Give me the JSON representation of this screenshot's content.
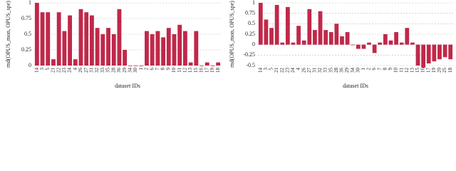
{
  "chart_data": [
    {
      "type": "bar",
      "ylabel": "rnd(OPUS_mon, OPUS_spe)",
      "xlabel": "dataset IDs",
      "color": "#c0284a",
      "grid": true,
      "ylim": [
        0,
        1
      ],
      "yticks": [
        0,
        0.25,
        0.5,
        0.75,
        1
      ],
      "categories": [
        "14",
        "3",
        "5",
        "21",
        "22",
        "23",
        "24",
        "4",
        "26",
        "27",
        "31",
        "32",
        "33",
        "35",
        "28",
        "36",
        "29",
        "34",
        "30",
        "1",
        "2",
        "6",
        "7",
        "8",
        "9",
        "10",
        "11",
        "12",
        "13",
        "15",
        "16",
        "17",
        "19",
        "18"
      ],
      "values": [
        1.0,
        0.85,
        0.85,
        0.1,
        0.85,
        0.55,
        0.8,
        0.1,
        0.9,
        0.85,
        0.8,
        0.6,
        0.5,
        0.6,
        0.5,
        0.9,
        0.25,
        0.0,
        0.0,
        0.0,
        0.55,
        0.5,
        0.55,
        0.45,
        0.6,
        0.5,
        0.65,
        0.55,
        0.05,
        0.55,
        0.0,
        0.05,
        0.0,
        0.05
      ]
    },
    {
      "type": "bar",
      "ylabel": "rnd(OPUS_mon, OPUS_spe)",
      "xlabel": "dataset IDs",
      "color": "#c0284a",
      "grid": true,
      "ylim": [
        -0.5,
        1
      ],
      "yticks": [
        -0.5,
        -0.25,
        0,
        0.25,
        0.5,
        0.75,
        1
      ],
      "categories": [
        "14",
        "3",
        "5",
        "21",
        "22",
        "23",
        "24",
        "4",
        "26",
        "27",
        "31",
        "32",
        "33",
        "35",
        "28",
        "36",
        "29",
        "34",
        "30",
        "1",
        "2",
        "6",
        "7",
        "8",
        "9",
        "10",
        "11",
        "12",
        "13",
        "15",
        "16",
        "17",
        "19",
        "20",
        "25",
        "18"
      ],
      "values": [
        1.0,
        0.6,
        0.4,
        0.95,
        0.05,
        0.9,
        0.05,
        0.45,
        0.1,
        0.85,
        0.35,
        0.8,
        0.35,
        0.3,
        0.5,
        0.2,
        0.3,
        0.0,
        -0.1,
        -0.1,
        0.05,
        -0.2,
        0.05,
        0.25,
        0.1,
        0.3,
        0.05,
        0.4,
        0.05,
        -0.5,
        -0.55,
        -0.45,
        -0.4,
        -0.35,
        -0.3,
        -0.35
      ]
    }
  ]
}
